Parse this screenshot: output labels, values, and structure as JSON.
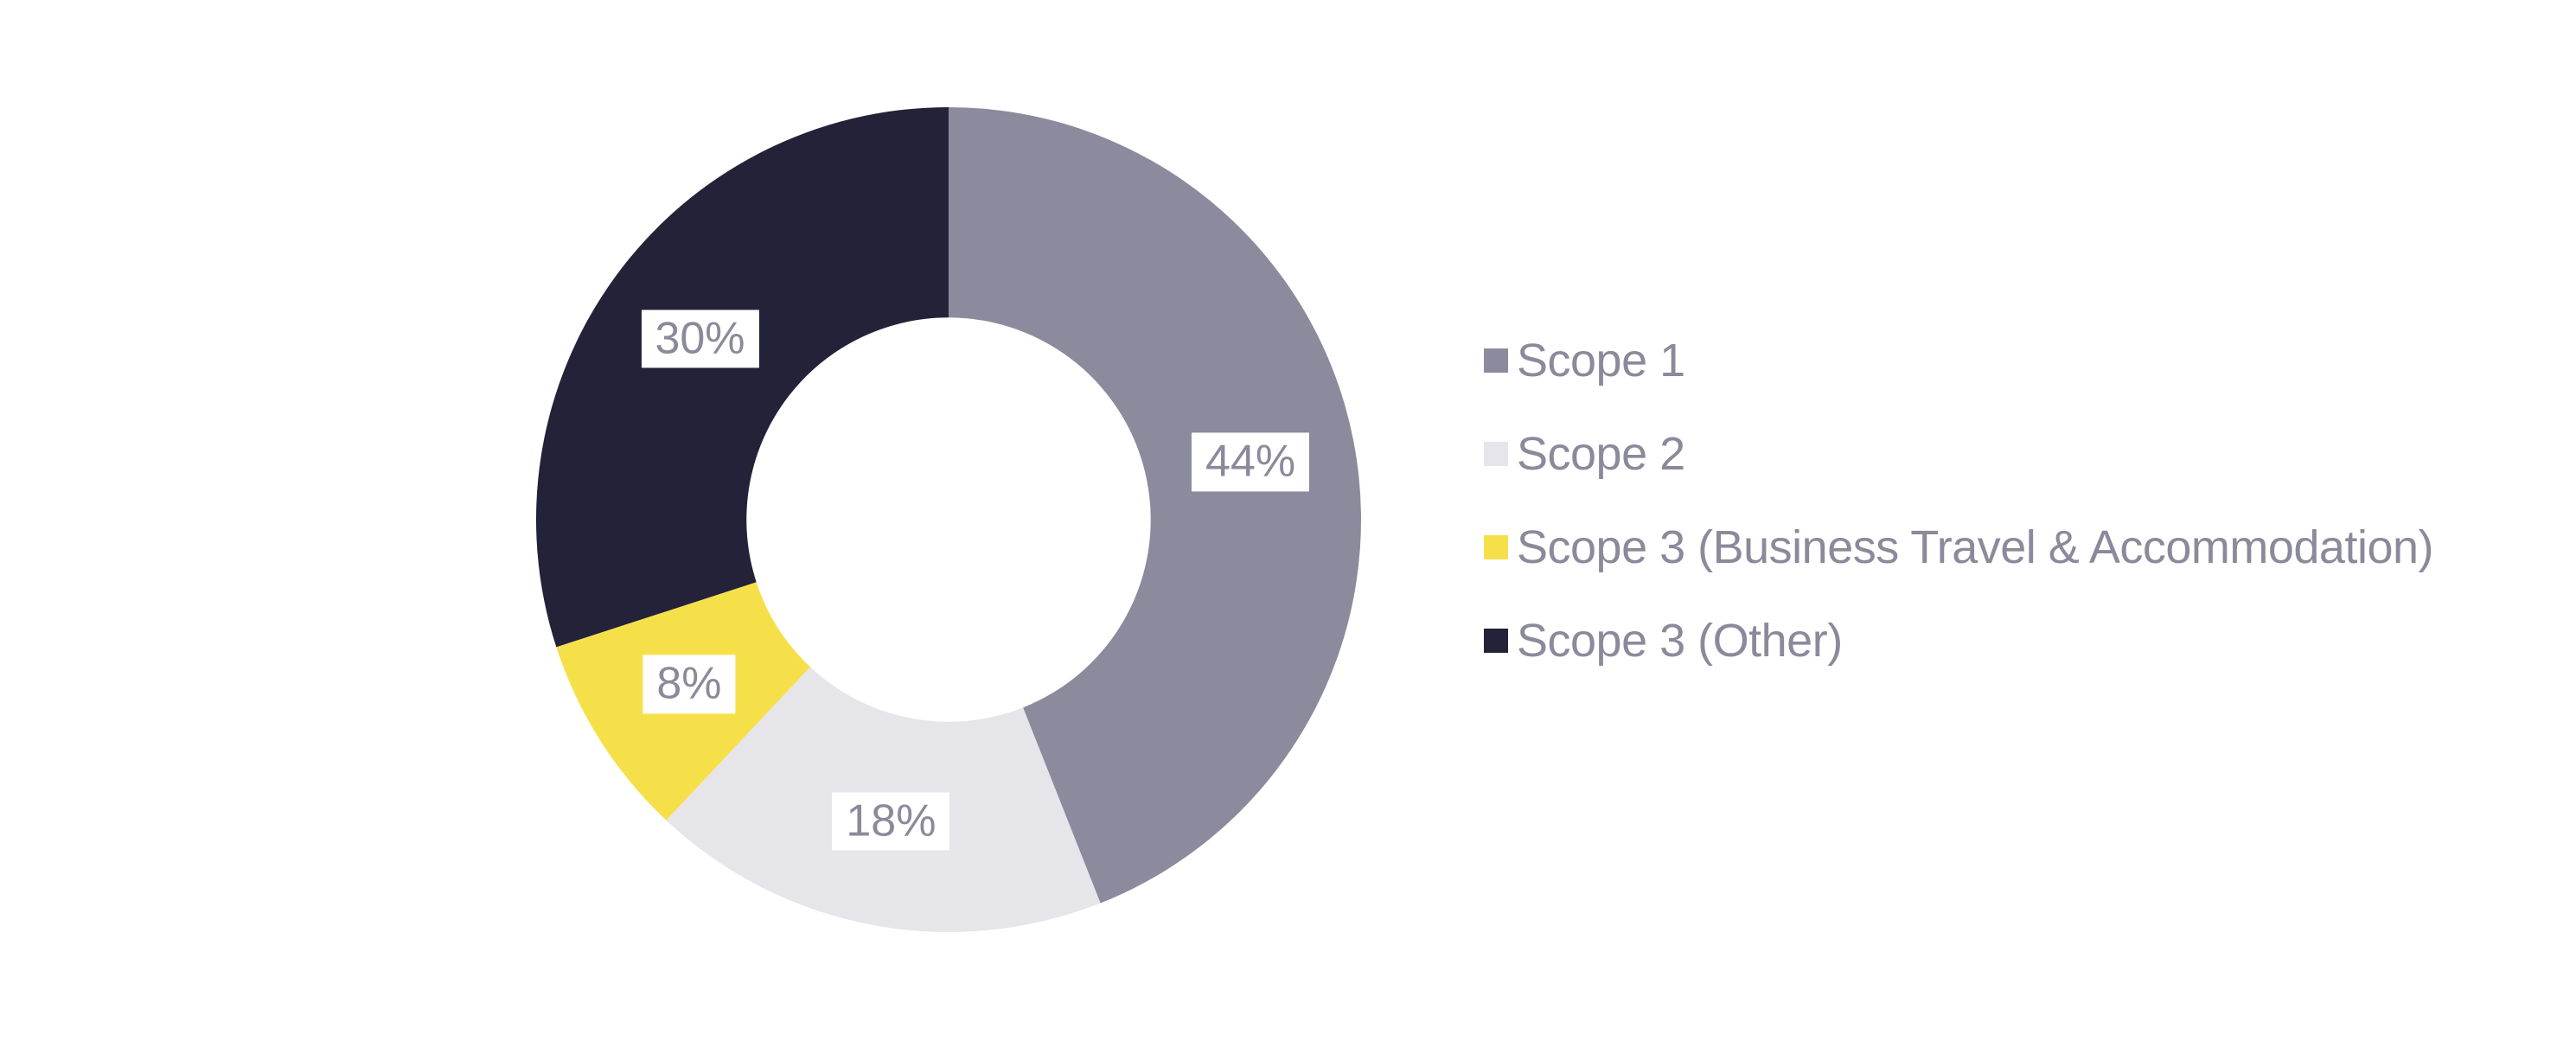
{
  "chart_data": {
    "type": "pie",
    "subtype": "donut",
    "title": "",
    "legend_position": "right",
    "start_angle_deg": 0,
    "direction": "clockwise",
    "inner_radius_ratio": 0.49,
    "hole_color": "#ffffff",
    "label_text_color": "#8b8a9b",
    "label_background": "#ffffff",
    "series": [
      {
        "name": "Scope 1",
        "value": 44,
        "label": "44%",
        "color": "#8c8b9d"
      },
      {
        "name": "Scope 2",
        "value": 18,
        "label": "18%",
        "color": "#e6e5ea"
      },
      {
        "name": "Scope 3 (Business Travel & Accommodation)",
        "value": 8,
        "label": "8%",
        "color": "#f6e04a"
      },
      {
        "name": "Scope 3 (Other)",
        "value": 30,
        "label": "30%",
        "color": "#232239"
      }
    ]
  }
}
